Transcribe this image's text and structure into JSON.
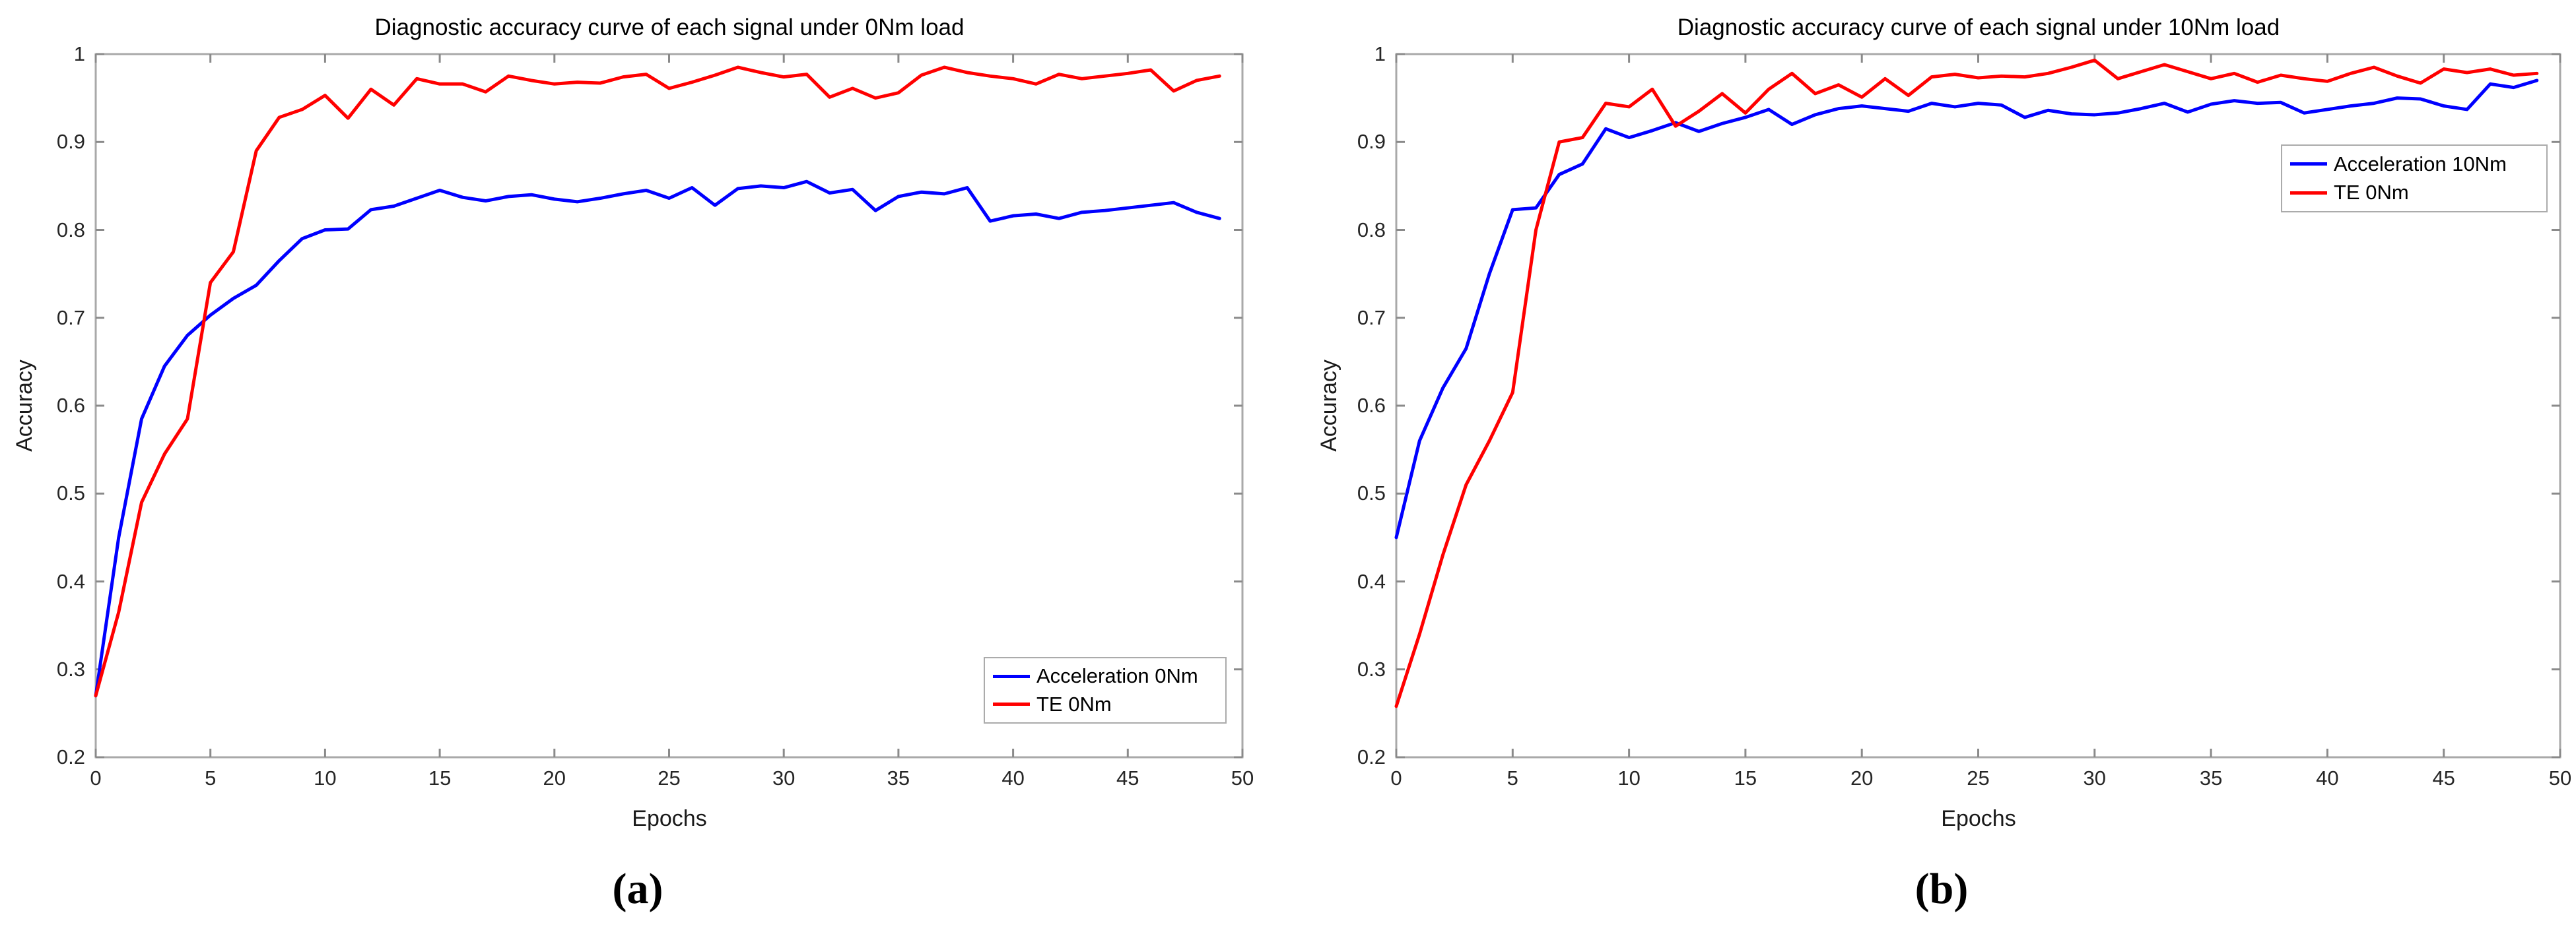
{
  "figure": {
    "background": "#ffffff",
    "captions": {
      "a": "(a)",
      "b": "(b)"
    }
  },
  "chart_data": [
    {
      "type": "line",
      "panel": "a",
      "title": "Diagnostic accuracy curve of each signal under 0Nm load",
      "xlabel": "Epochs",
      "ylabel": "Accuracy",
      "xlim": [
        0,
        50
      ],
      "ylim": [
        0.2,
        1
      ],
      "xticks": [
        0,
        5,
        10,
        15,
        20,
        25,
        30,
        35,
        40,
        45,
        50
      ],
      "xtick_labels": [
        "0",
        "5",
        "10",
        "15",
        "20",
        "25",
        "30",
        "35",
        "40",
        "45",
        "50"
      ],
      "yticks": [
        0.2,
        0.3,
        0.4,
        0.5,
        0.6,
        0.7,
        0.8,
        0.9,
        1
      ],
      "ytick_labels": [
        "0.2",
        "0.3",
        "0.4",
        "0.5",
        "0.6",
        "0.7",
        "0.8",
        "0.9",
        "1"
      ],
      "grid": false,
      "legend_position": "bottom-right",
      "axis_color": "#a9a9a9",
      "tick_color": "#8a8a8a",
      "x": [
        0,
        1,
        2,
        3,
        4,
        5,
        6,
        7,
        8,
        9,
        10,
        11,
        12,
        13,
        14,
        15,
        16,
        17,
        18,
        19,
        20,
        21,
        22,
        23,
        24,
        25,
        26,
        27,
        28,
        29,
        30,
        31,
        32,
        33,
        34,
        35,
        36,
        37,
        38,
        39,
        40,
        41,
        42,
        43,
        44,
        45,
        46,
        47,
        48,
        49
      ],
      "series": [
        {
          "name": "Acceleration 0Nm",
          "color": "#0000ff",
          "values": [
            0.27,
            0.45,
            0.585,
            0.645,
            0.68,
            0.703,
            0.722,
            0.737,
            0.765,
            0.79,
            0.8,
            0.801,
            0.823,
            0.827,
            0.836,
            0.845,
            0.837,
            0.833,
            0.838,
            0.84,
            0.835,
            0.832,
            0.836,
            0.841,
            0.845,
            0.836,
            0.848,
            0.828,
            0.847,
            0.85,
            0.848,
            0.855,
            0.842,
            0.846,
            0.822,
            0.838,
            0.843,
            0.841,
            0.848,
            0.81,
            0.816,
            0.818,
            0.813,
            0.82,
            0.822,
            0.825,
            0.828,
            0.831,
            0.82,
            0.813
          ]
        },
        {
          "name": "TE 0Nm",
          "color": "#ff0000",
          "values": [
            0.27,
            0.365,
            0.49,
            0.545,
            0.585,
            0.74,
            0.775,
            0.89,
            0.928,
            0.937,
            0.953,
            0.927,
            0.96,
            0.942,
            0.972,
            0.966,
            0.966,
            0.957,
            0.975,
            0.97,
            0.966,
            0.968,
            0.967,
            0.974,
            0.977,
            0.961,
            0.968,
            0.976,
            0.985,
            0.979,
            0.974,
            0.977,
            0.951,
            0.961,
            0.95,
            0.956,
            0.976,
            0.985,
            0.979,
            0.975,
            0.972,
            0.966,
            0.977,
            0.972,
            0.975,
            0.978,
            0.982,
            0.958,
            0.97,
            0.975
          ]
        }
      ]
    },
    {
      "type": "line",
      "panel": "b",
      "title": "Diagnostic accuracy curve of each signal under 10Nm load",
      "xlabel": "Epochs",
      "ylabel": "Accuracy",
      "xlim": [
        0,
        50
      ],
      "ylim": [
        0.2,
        1
      ],
      "xticks": [
        0,
        5,
        10,
        15,
        20,
        25,
        30,
        35,
        40,
        45,
        50
      ],
      "xtick_labels": [
        "0",
        "5",
        "10",
        "15",
        "20",
        "25",
        "30",
        "35",
        "40",
        "45",
        "50"
      ],
      "yticks": [
        0.2,
        0.3,
        0.4,
        0.5,
        0.6,
        0.7,
        0.8,
        0.9,
        1
      ],
      "ytick_labels": [
        "0.2",
        "0.3",
        "0.4",
        "0.5",
        "0.6",
        "0.7",
        "0.8",
        "0.9",
        "1"
      ],
      "grid": false,
      "legend_position": "upper-right",
      "axis_color": "#a9a9a9",
      "tick_color": "#8a8a8a",
      "x": [
        0,
        1,
        2,
        3,
        4,
        5,
        6,
        7,
        8,
        9,
        10,
        11,
        12,
        13,
        14,
        15,
        16,
        17,
        18,
        19,
        20,
        21,
        22,
        23,
        24,
        25,
        26,
        27,
        28,
        29,
        30,
        31,
        32,
        33,
        34,
        35,
        36,
        37,
        38,
        39,
        40,
        41,
        42,
        43,
        44,
        45,
        46,
        47,
        48,
        49
      ],
      "series": [
        {
          "name": "Acceleration 10Nm",
          "color": "#0000ff",
          "values": [
            0.45,
            0.56,
            0.62,
            0.665,
            0.75,
            0.823,
            0.825,
            0.863,
            0.875,
            0.915,
            0.905,
            0.913,
            0.922,
            0.912,
            0.921,
            0.928,
            0.937,
            0.92,
            0.931,
            0.938,
            0.941,
            0.938,
            0.935,
            0.944,
            0.94,
            0.944,
            0.942,
            0.928,
            0.936,
            0.932,
            0.931,
            0.933,
            0.938,
            0.944,
            0.934,
            0.943,
            0.947,
            0.944,
            0.945,
            0.933,
            0.937,
            0.941,
            0.944,
            0.95,
            0.949,
            0.941,
            0.937,
            0.966,
            0.962,
            0.97
          ]
        },
        {
          "name": "TE 0Nm",
          "color": "#ff0000",
          "values": [
            0.258,
            0.34,
            0.43,
            0.51,
            0.56,
            0.615,
            0.8,
            0.9,
            0.905,
            0.944,
            0.94,
            0.96,
            0.918,
            0.935,
            0.955,
            0.933,
            0.96,
            0.978,
            0.955,
            0.965,
            0.951,
            0.972,
            0.953,
            0.974,
            0.977,
            0.973,
            0.975,
            0.974,
            0.978,
            0.985,
            0.993,
            0.972,
            0.98,
            0.988,
            0.98,
            0.972,
            0.978,
            0.968,
            0.976,
            0.972,
            0.969,
            0.978,
            0.985,
            0.975,
            0.967,
            0.983,
            0.979,
            0.983,
            0.976,
            0.978
          ]
        }
      ]
    }
  ]
}
